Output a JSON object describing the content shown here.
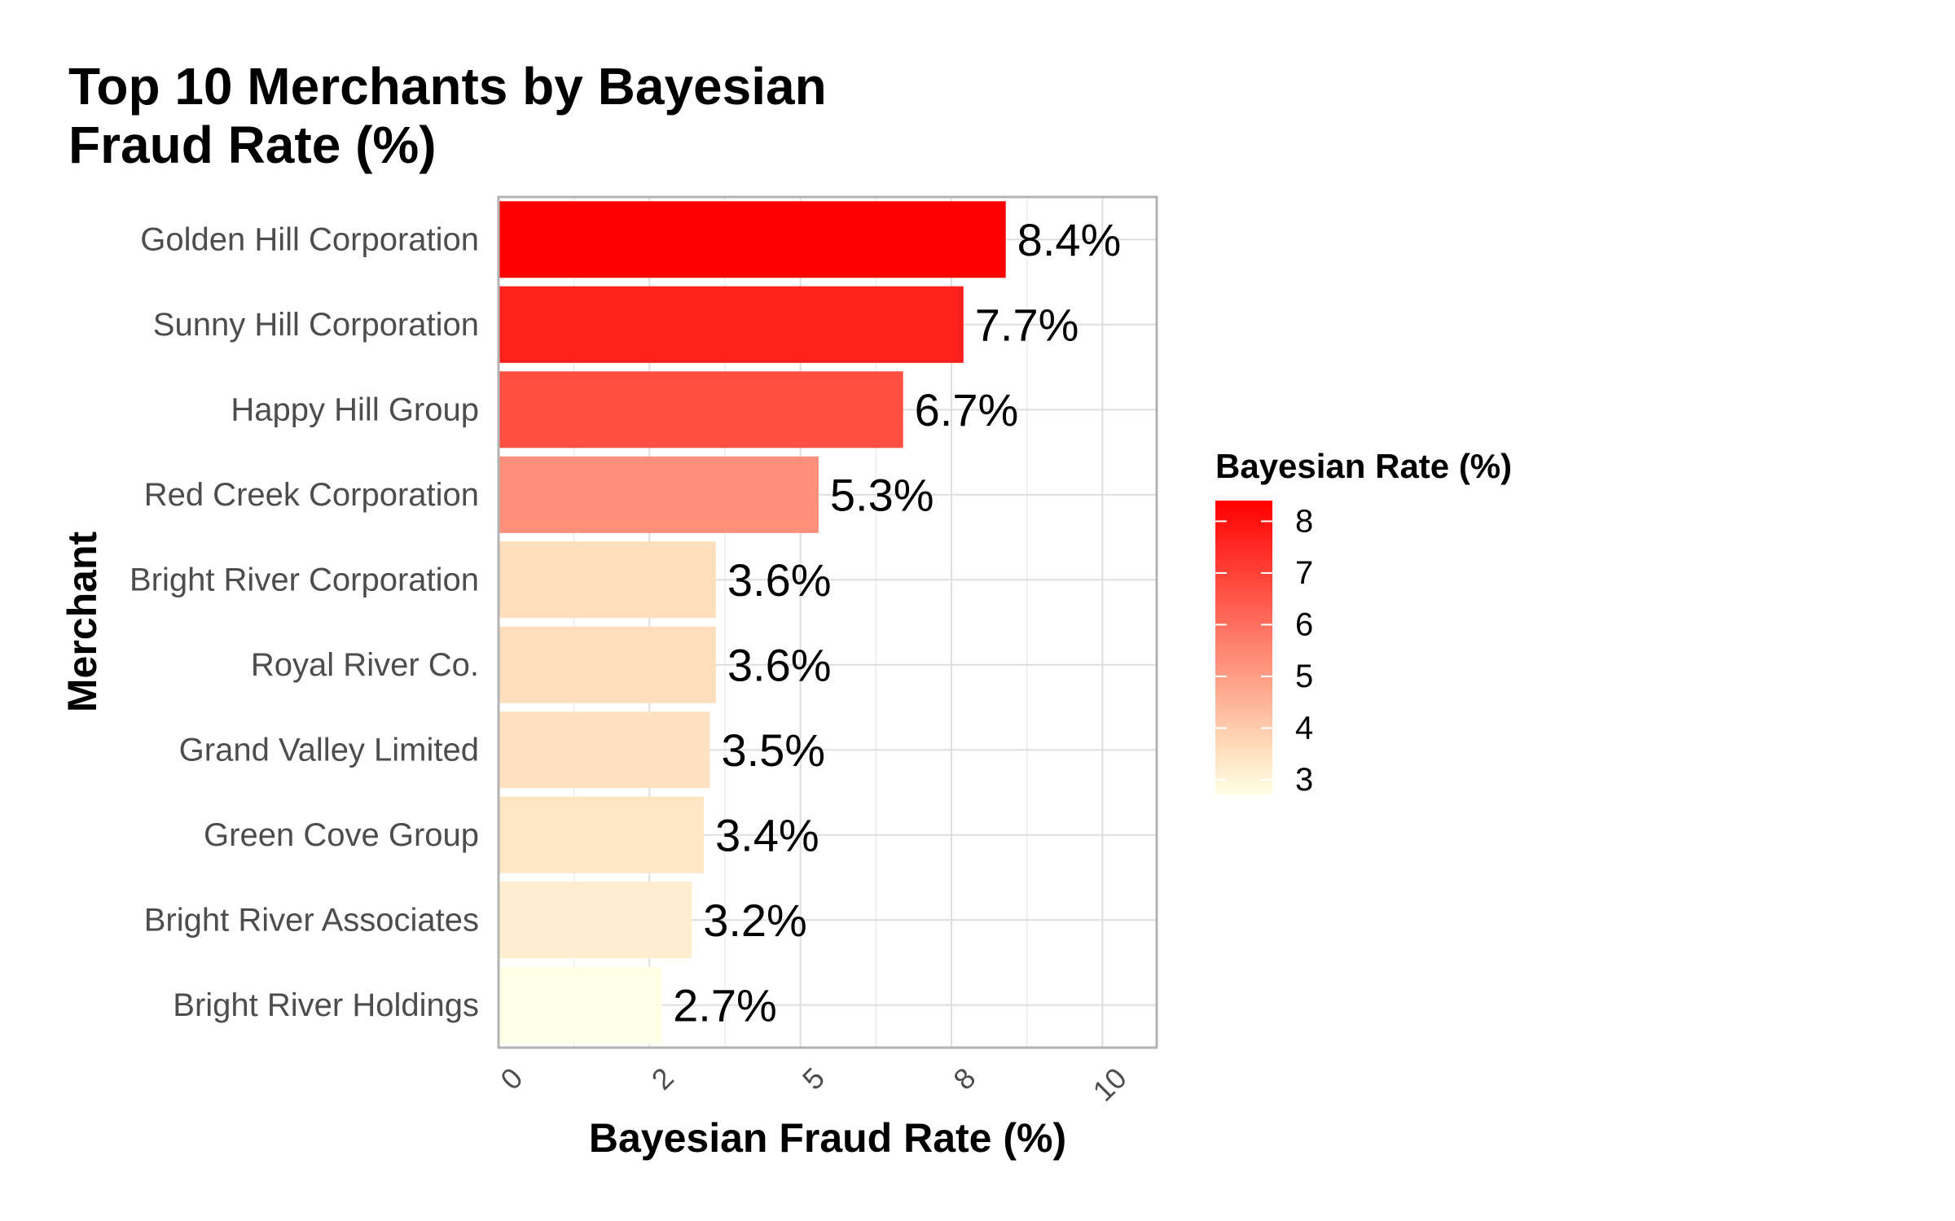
{
  "chart_data": {
    "type": "bar",
    "orientation": "horizontal",
    "title": "Top 10 Merchants by Bayesian Fraud Rate (%)",
    "title_lines": [
      "Top 10 Merchants by Bayesian",
      "Fraud Rate (%)"
    ],
    "xlabel": "Bayesian Fraud Rate (%)",
    "ylabel": "Merchant",
    "categories": [
      "Golden Hill Corporation",
      "Sunny Hill Corporation",
      "Happy Hill Group",
      "Red Creek Corporation",
      "Bright River Corporation",
      "Royal River Co.",
      "Grand Valley Limited",
      "Green Cove Group",
      "Bright River Associates",
      "Bright River Holdings"
    ],
    "values": [
      8.4,
      7.7,
      6.7,
      5.3,
      3.6,
      3.6,
      3.5,
      3.4,
      3.2,
      2.7
    ],
    "value_labels": [
      "8.4%",
      "7.7%",
      "6.7%",
      "5.3%",
      "3.6%",
      "3.6%",
      "3.5%",
      "3.4%",
      "3.2%",
      "2.7%"
    ],
    "xlim": [
      0,
      10.9
    ],
    "x_ticks": [
      0,
      2.5,
      5,
      7.5,
      10
    ],
    "x_tick_labels": [
      "0",
      "2",
      "5",
      "8",
      "10"
    ],
    "grid": true,
    "legend": {
      "title": "Bayesian Rate (%)",
      "position": "right",
      "range": [
        2.7,
        8.4
      ],
      "ticks": [
        3,
        4,
        5,
        6,
        7,
        8
      ],
      "tick_labels": [
        "3",
        "4",
        "5",
        "6",
        "7",
        "8"
      ],
      "color_low": "#FFFFE5",
      "color_mid": "#FEE0BE",
      "color_high": "#FF0000"
    }
  }
}
